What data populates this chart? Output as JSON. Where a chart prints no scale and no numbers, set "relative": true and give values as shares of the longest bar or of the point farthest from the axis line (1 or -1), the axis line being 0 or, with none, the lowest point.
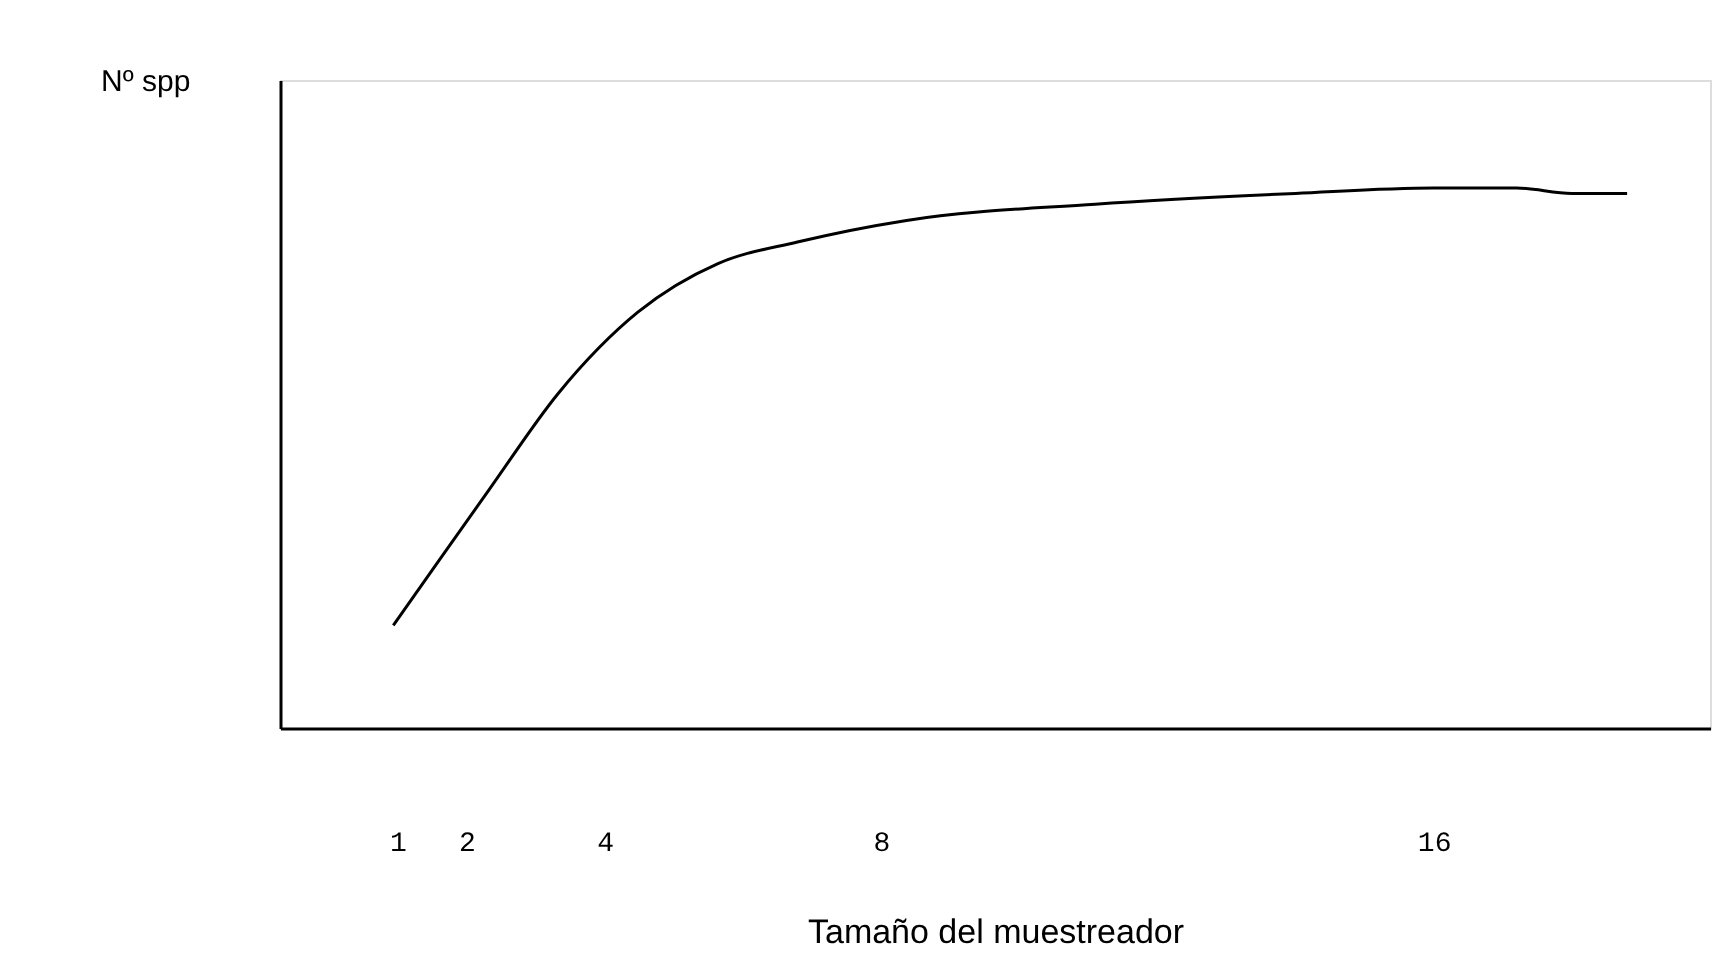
{
  "chart_data": {
    "type": "line",
    "relative": true,
    "xlabel": "Tamaño del muestreador",
    "ylabel": "Nº spp",
    "xlim": [
      -0.7,
      20
    ],
    "xticks": [
      1,
      2,
      4,
      8,
      16
    ],
    "grid": false,
    "legend": false,
    "marker": "none",
    "line_style": "solid",
    "tick_labels": "x",
    "x": [
      0.94,
      1.6,
      2.32,
      3.33,
      4.48,
      5.64,
      6.79,
      8.37,
      11.1,
      14.0,
      16.0,
      17.2,
      18.0,
      18.8
    ],
    "series": [
      {
        "color": "#000000",
        "values": [
          0.19,
          0.31,
          0.44,
          0.62,
          0.77,
          0.86,
          0.9,
          0.94,
          0.97,
          0.99,
          1.0,
          1.0,
          0.99,
          0.99
        ]
      }
    ]
  }
}
